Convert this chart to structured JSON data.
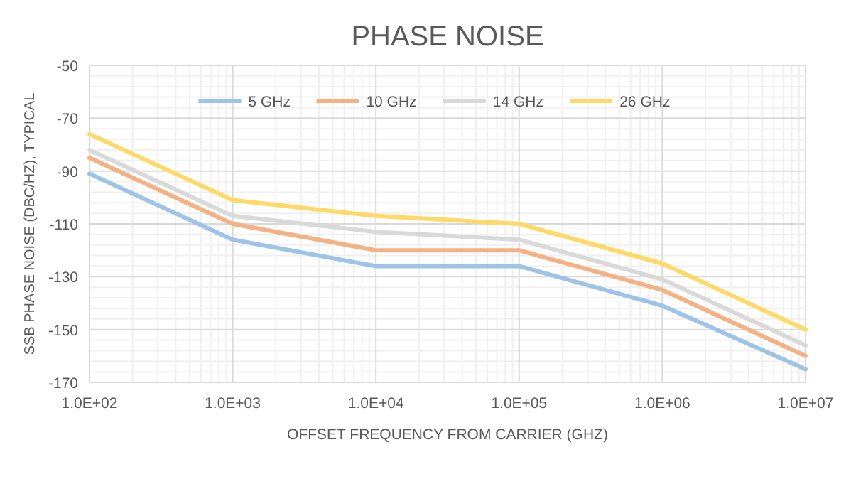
{
  "chart_data": {
    "type": "line",
    "title": "PHASE NOISE",
    "xlabel": "OFFSET FREQUENCY FROM CARRIER (GHZ)",
    "ylabel": "SSB PHASE NOISE (DBC/HZ), TYPICAL",
    "x": [
      100,
      1000,
      10000,
      100000,
      1000000,
      10000000
    ],
    "series": [
      {
        "name": "5 GHz",
        "color": "#9dc3e6",
        "values": [
          -91,
          -116,
          -126,
          -126,
          -141,
          -165
        ]
      },
      {
        "name": "10 GHz",
        "color": "#f4b183",
        "values": [
          -85,
          -110,
          -120,
          -120,
          -135,
          -160
        ]
      },
      {
        "name": "14 GHz",
        "color": "#d9d9d9",
        "values": [
          -82,
          -107,
          -113,
          -116,
          -131,
          -156
        ]
      },
      {
        "name": "26 GHz",
        "color": "#ffd966",
        "values": [
          -76,
          -101,
          -107,
          -110,
          -125,
          -150
        ]
      }
    ],
    "log": "x",
    "xlim": [
      100,
      10000000
    ],
    "xticks": [
      {
        "value": 100,
        "label": "1.0E+02"
      },
      {
        "value": 1000,
        "label": "1.0E+03"
      },
      {
        "value": 10000,
        "label": "1.0E+04"
      },
      {
        "value": 100000,
        "label": "1.0E+05"
      },
      {
        "value": 1000000,
        "label": "1.0E+06"
      },
      {
        "value": 10000000,
        "label": "1.0E+07"
      }
    ],
    "ylim": [
      -170,
      -50
    ],
    "yticks": [
      -170,
      -150,
      -130,
      -110,
      -90,
      -70,
      -50
    ],
    "grid": true,
    "legend": "top",
    "marker": "none",
    "line_style": "solid"
  }
}
